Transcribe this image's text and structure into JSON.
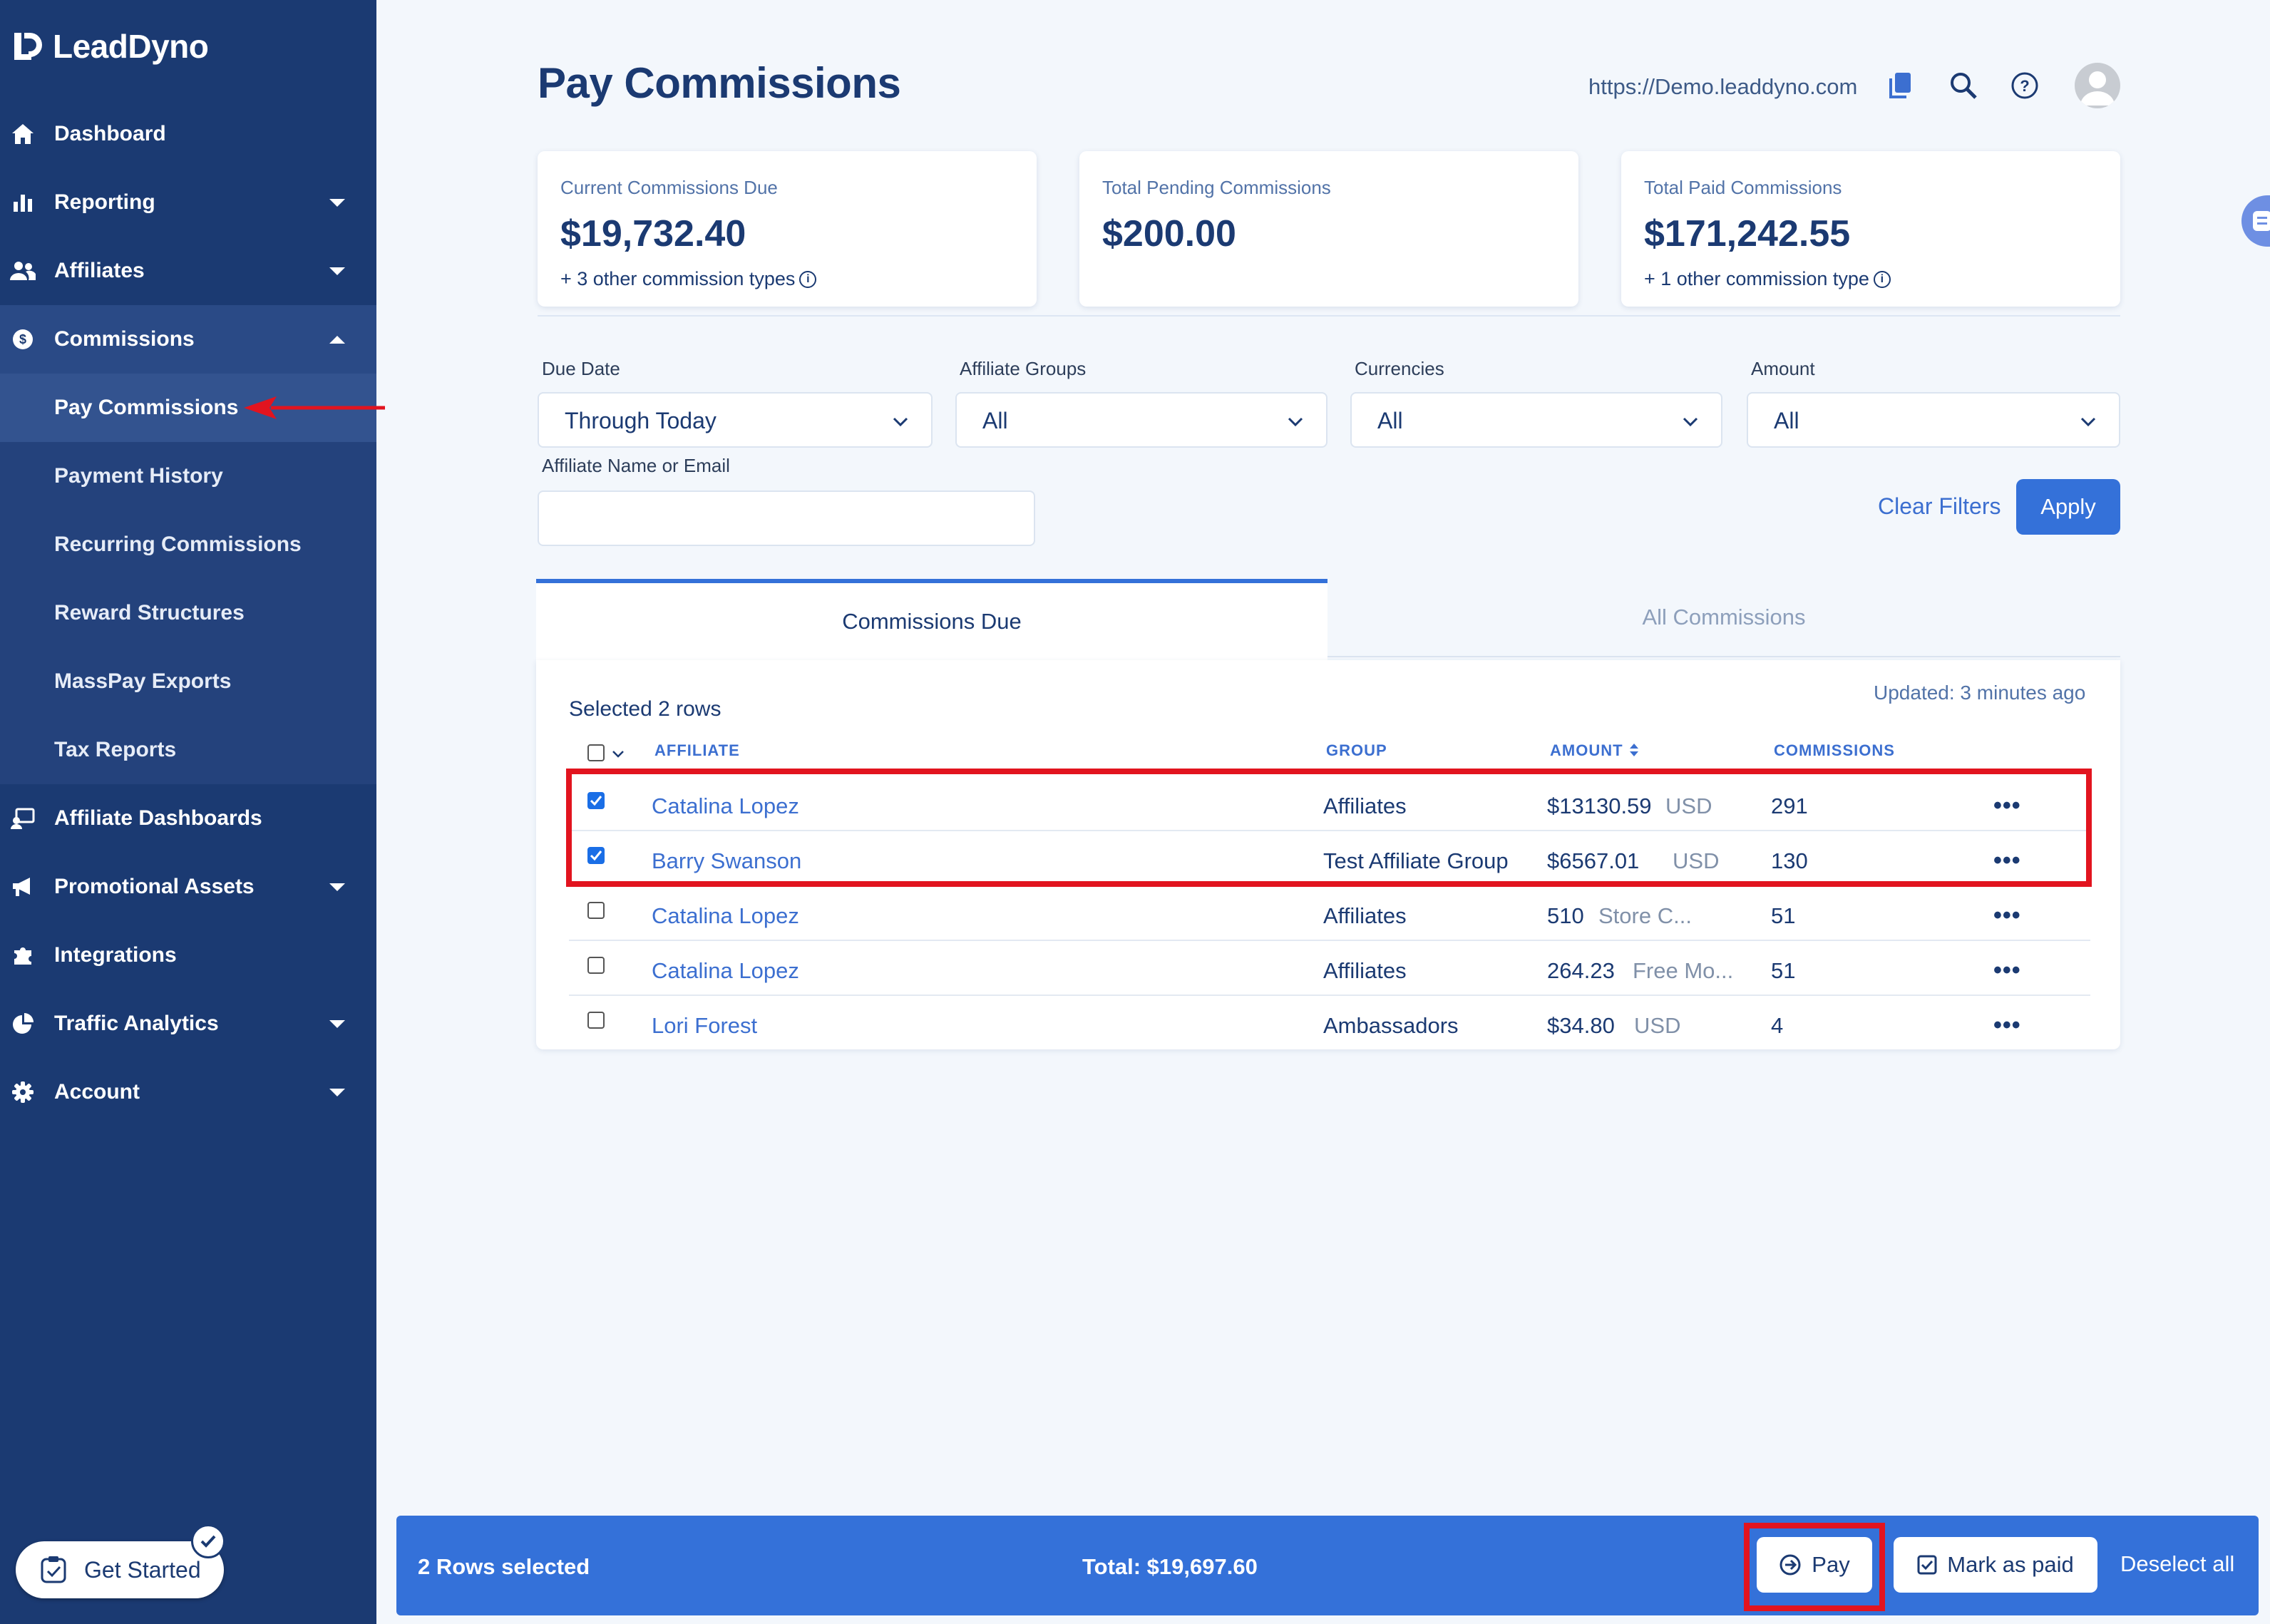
{
  "app": {
    "name": "LeadDyno"
  },
  "sidebar": {
    "items": [
      {
        "label": "Dashboard",
        "icon": "home-icon"
      },
      {
        "label": "Reporting",
        "icon": "bar-chart-icon"
      },
      {
        "label": "Affiliates",
        "icon": "users-icon"
      },
      {
        "label": "Commissions",
        "icon": "dollar-circle-icon"
      },
      {
        "label": "Affiliate Dashboards",
        "icon": "dashboard-screen-icon"
      },
      {
        "label": "Promotional Assets",
        "icon": "megaphone-icon"
      },
      {
        "label": "Integrations",
        "icon": "puzzle-icon"
      },
      {
        "label": "Traffic Analytics",
        "icon": "pie-chart-icon"
      },
      {
        "label": "Account",
        "icon": "gear-icon"
      }
    ],
    "sub_items": [
      "Pay Commissions",
      "Payment History",
      "Recurring Commissions",
      "Reward Structures",
      "MassPay Exports",
      "Tax Reports"
    ],
    "get_started": "Get Started"
  },
  "header": {
    "title": "Pay Commissions",
    "url": "https://Demo.leaddyno.com"
  },
  "stats": [
    {
      "label": "Current Commissions Due",
      "value": "$19,732.40",
      "sub": "+ 3 other commission types"
    },
    {
      "label": "Total Pending Commissions",
      "value": "$200.00",
      "sub": ""
    },
    {
      "label": "Total Paid Commissions",
      "value": "$171,242.55",
      "sub": "+ 1 other commission type"
    }
  ],
  "filters": {
    "due_date": {
      "label": "Due Date",
      "value": "Through Today"
    },
    "affiliate_groups": {
      "label": "Affiliate Groups",
      "value": "All"
    },
    "currencies": {
      "label": "Currencies",
      "value": "All"
    },
    "amount": {
      "label": "Amount",
      "value": "All"
    },
    "name_email": {
      "label": "Affiliate Name or Email",
      "value": ""
    },
    "clear_label": "Clear Filters",
    "apply_label": "Apply"
  },
  "tabs": [
    "Commissions Due",
    "All Commissions"
  ],
  "table": {
    "selected_text": "Selected 2 rows",
    "updated_text": "Updated: 3 minutes ago",
    "columns": [
      "AFFILIATE",
      "GROUP",
      "AMOUNT",
      "COMMISSIONS"
    ],
    "rows": [
      {
        "checked": true,
        "affiliate": "Catalina Lopez",
        "group": "Affiliates",
        "amount": "$13130.59",
        "currency": "USD",
        "commissions": "291"
      },
      {
        "checked": true,
        "affiliate": "Barry Swanson",
        "group": "Test Affiliate Group",
        "amount": "$6567.01",
        "currency": "USD",
        "commissions": "130"
      },
      {
        "checked": false,
        "affiliate": "Catalina Lopez",
        "group": "Affiliates",
        "amount": "510",
        "currency": "Store C...",
        "commissions": "51"
      },
      {
        "checked": false,
        "affiliate": "Catalina Lopez",
        "group": "Affiliates",
        "amount": "264.23",
        "currency": "Free Mo...",
        "commissions": "51"
      },
      {
        "checked": false,
        "affiliate": "Lori Forest",
        "group": "Ambassadors",
        "amount": "$34.80",
        "currency": "USD",
        "commissions": "4"
      }
    ],
    "row_menu": "•••"
  },
  "bottom_bar": {
    "rows_selected": "2 Rows selected",
    "total": "Total: $19,697.60",
    "pay_label": "Pay",
    "mark_paid_label": "Mark as paid",
    "deselect_label": "Deselect all"
  },
  "colors": {
    "sidebar_bg": "#1b3a72",
    "accent": "#3471d9",
    "highlight": "#e2141f"
  }
}
